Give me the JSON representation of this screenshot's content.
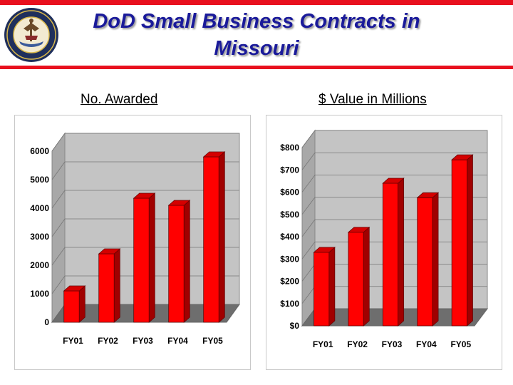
{
  "header": {
    "title_line1": "DoD Small Business Contracts in",
    "title_line2": "Missouri",
    "seal_text": "DEPARTMENT OF THE NAVY · UNITED STATES OF AMERICA"
  },
  "colors": {
    "accent": "#e8101e",
    "title": "#1a1a9a",
    "bar": "#ff0000",
    "plot_bg": "#c4c4c4"
  },
  "chart_data": [
    {
      "type": "bar",
      "title": "No. Awarded",
      "categories": [
        "FY01",
        "FY02",
        "FY03",
        "FY04",
        "FY05"
      ],
      "values": [
        1100,
        2400,
        4350,
        4100,
        5800
      ],
      "ylim": [
        0,
        6000
      ],
      "yticks": [
        "0",
        "1000",
        "2000",
        "3000",
        "4000",
        "5000",
        "6000"
      ],
      "grid": true,
      "style": "3d"
    },
    {
      "type": "bar",
      "title": "$ Value in Millions",
      "categories": [
        "FY01",
        "FY02",
        "FY03",
        "FY04",
        "FY05"
      ],
      "values": [
        330,
        420,
        640,
        575,
        745
      ],
      "ylim": [
        0,
        800
      ],
      "yticks": [
        "$0",
        "$100",
        "$200",
        "$300",
        "$400",
        "$500",
        "$600",
        "$700",
        "$800"
      ],
      "grid": true,
      "style": "3d"
    }
  ]
}
